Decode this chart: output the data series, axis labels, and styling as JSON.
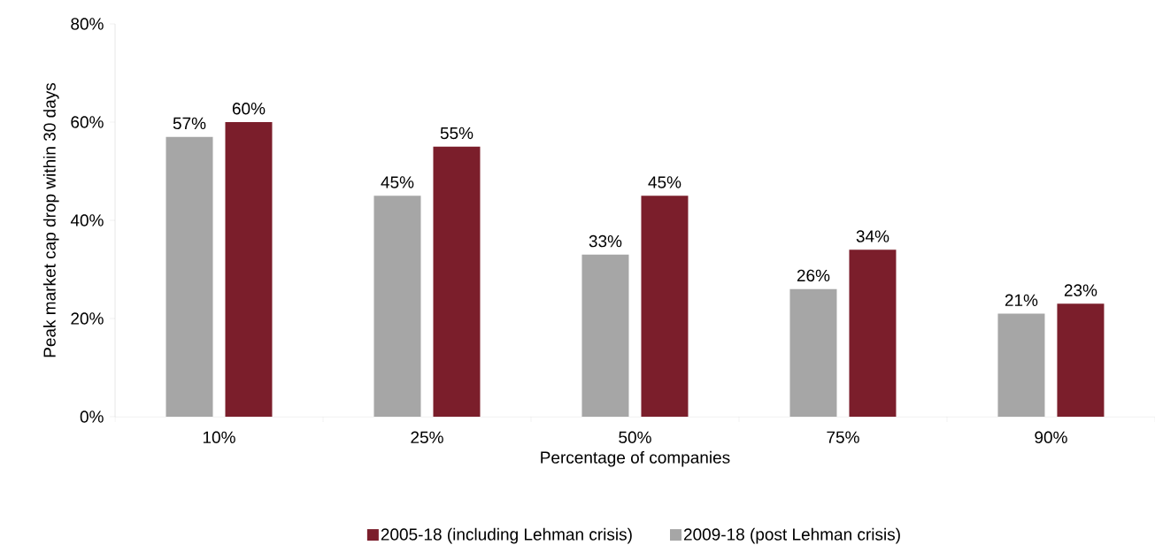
{
  "chart_data": {
    "type": "bar",
    "xlabel": "Percentage of companies",
    "ylabel": "Peak market cap drop within 30 days",
    "categories": [
      "10%",
      "25%",
      "50%",
      "75%",
      "90%"
    ],
    "series": [
      {
        "name": "2009-18 (post Lehman crisis)",
        "color": "#a6a6a6",
        "values": [
          57,
          45,
          33,
          26,
          21
        ],
        "value_labels": [
          "57%",
          "45%",
          "33%",
          "26%",
          "21%"
        ]
      },
      {
        "name": "2005-18 (including Lehman crisis)",
        "color": "#7b1e2b",
        "values": [
          60,
          55,
          45,
          34,
          23
        ],
        "value_labels": [
          "60%",
          "55%",
          "45%",
          "34%",
          "23%"
        ]
      }
    ],
    "ylim": [
      0,
      80
    ],
    "yticks": [
      {
        "value": 0,
        "label": "0%"
      },
      {
        "value": 20,
        "label": "20%"
      },
      {
        "value": 40,
        "label": "40%"
      },
      {
        "value": 60,
        "label": "60%"
      },
      {
        "value": 80,
        "label": "80%"
      }
    ],
    "grid": false,
    "legend": "bottom"
  }
}
